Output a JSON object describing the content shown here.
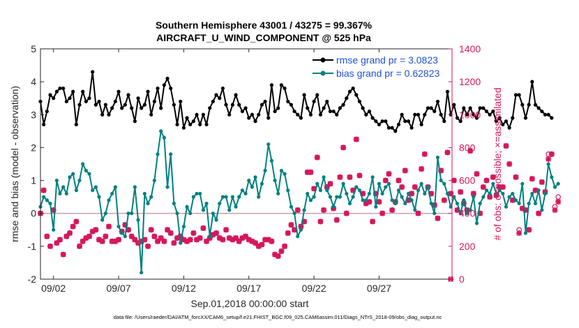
{
  "colors": {
    "rmse": "#000000",
    "bias": "#008080",
    "obs": "#d6175b",
    "zero_line": "#c8a0a8",
    "legend_text": "#1f4fd6",
    "axis": "#262626"
  },
  "chart_data": {
    "type": "line",
    "title_line1": "Southern Hemisphere 43001 / 43275 = 99.367%",
    "title_line2": "AIRCRAFT_U_WIND_COMPONENT @ 525 hPa",
    "xlabel": "Sep.01,2018 00:00:00 start",
    "ylabel_left": "rmse and bias (model - observation)",
    "ylabel_right": "# of obs: o=possible; ×=assimilated",
    "xlim": [
      1,
      32.6
    ],
    "ylim_left": [
      -2,
      5
    ],
    "ylim_right": [
      0,
      1400
    ],
    "x_ticks": [
      2,
      7,
      12,
      17,
      22,
      27
    ],
    "x_tick_labels": [
      "09/02",
      "09/07",
      "09/12",
      "09/17",
      "09/22",
      "09/27"
    ],
    "y_ticks_left": [
      -2,
      -1,
      0,
      1,
      2,
      3,
      4,
      5
    ],
    "y_ticks_left_labels": [
      "-2",
      "-1",
      "0",
      "1",
      "2",
      "3",
      "4",
      "5"
    ],
    "y_ticks_right": [
      0,
      200,
      400,
      600,
      800,
      1000,
      1200,
      1400
    ],
    "y_ticks_right_labels": [
      "0",
      "200",
      "400",
      "600",
      "800",
      "1000",
      "1200",
      "1400"
    ],
    "footnote": "data file: /Users/raeder/DAI/ATM_forcXX/CAM6_setup/f.e21.FHIST_BGC.f09_025.CAM6assim.011/Diags_NTrS_2018-09/obs_diag_output.nc",
    "legend": [
      {
        "name": "rmse grand pr = 3.0823",
        "series": "rmse"
      },
      {
        "name": "bias grand pr = 0.62823",
        "series": "bias"
      }
    ],
    "x_start": 1.0,
    "x_step": 0.25,
    "series": [
      {
        "name": "rmse",
        "values": [
          3.4,
          2.7,
          3.1,
          3.6,
          3.5,
          3.7,
          3.8,
          3.8,
          3.4,
          3.5,
          3.7,
          2.7,
          3.3,
          3.7,
          3.4,
          3.5,
          4.3,
          3.3,
          3.4,
          3.0,
          3.3,
          3.0,
          3.2,
          3.4,
          3.7,
          3.2,
          3.3,
          3.6,
          3.2,
          2.8,
          3.5,
          3.2,
          3.3,
          3.7,
          3.0,
          3.4,
          3.8,
          3.2,
          3.9,
          4.1,
          3.8,
          3.3,
          2.7,
          3.4,
          2.6,
          2.9,
          2.7,
          2.8,
          3.0,
          2.7,
          3.0,
          2.7,
          3.2,
          3.4,
          3.6,
          3.5,
          3.8,
          3.3,
          3.0,
          3.3,
          3.6,
          3.3,
          3.1,
          3.2,
          2.9,
          3.0,
          2.8,
          3.0,
          3.3,
          3.4,
          2.9,
          3.9,
          3.1,
          3.2,
          3.9,
          3.8,
          3.4,
          3.3,
          3.1,
          3.0,
          2.9,
          3.6,
          3.2,
          3.0,
          3.4,
          3.6,
          3.0,
          3.2,
          3.4,
          3.1,
          3.1,
          3.0,
          3.2,
          3.3,
          3.5,
          3.7,
          3.8,
          3.6,
          3.4,
          3.2,
          3.0,
          3.1,
          2.9,
          2.8,
          2.7,
          2.8,
          2.8,
          2.6,
          2.6,
          2.5,
          2.7,
          3.0,
          2.8,
          2.8,
          2.6,
          3.0,
          3.0,
          2.7,
          3.0,
          3.2,
          3.2,
          3.1,
          3.4,
          3.0,
          2.8,
          3.7,
          3.0,
          3.3,
          2.9,
          2.8,
          3.2,
          3.0,
          3.2,
          3.0,
          2.9,
          3.2,
          3.2,
          3.1,
          3.0,
          3.1,
          2.8,
          2.9,
          2.7,
          2.8,
          2.6,
          2.9,
          3.6,
          3.6,
          3.3,
          2.9,
          3.3,
          4.0,
          3.3,
          3.2,
          3.1,
          3.0,
          3.0,
          2.9
        ]
      },
      {
        "name": "bias",
        "values": [
          0.2,
          0.5,
          0.4,
          0.3,
          -0.5,
          1.0,
          0.6,
          0.8,
          0.6,
          1.1,
          1.2,
          0.7,
          1.0,
          1.5,
          1.3,
          1.2,
          0.7,
          0.8,
          0.5,
          -0.2,
          0.0,
          0.4,
          0.6,
          0.8,
          -0.4,
          -0.6,
          -0.7,
          0.0,
          0.0,
          0.8,
          -0.2,
          -1.8,
          0.6,
          0.3,
          0.5,
          1.0,
          1.8,
          2.5,
          2.3,
          0.8,
          1.8,
          0.3,
          0.0,
          -0.9,
          -0.4,
          0.2,
          0.0,
          0.5,
          0.6,
          0.6,
          0.1,
          0.3,
          -0.7,
          0.0,
          -0.2,
          0.3,
          0.5,
          0.5,
          0.1,
          0.5,
          0.2,
          0.5,
          0.7,
          0.6,
          1.0,
          0.8,
          1.1,
          0.5,
          0.9,
          1.3,
          2.1,
          1.6,
          1.0,
          0.6,
          1.3,
          1.2,
          0.7,
          0.2,
          0.0,
          -0.7,
          -0.5,
          0.1,
          0.6,
          0.4,
          0.5,
          0.9,
          0.7,
          1.1,
          0.7,
          0.5,
          0.2,
          0.5,
          0.5,
          0.9,
          0.6,
          0.3,
          0.5,
          0.8,
          0.7,
          0.4,
          0.4,
          0.6,
          1.1,
          0.2,
          0.9,
          0.6,
          0.8,
          0.9,
          0.4,
          0.3,
          0.7,
          0.5,
          0.3,
          0.6,
          0.4,
          0.1,
          0.7,
          0.9,
          0.6,
          0.8,
          0.3,
          0.0,
          1.7,
          1.0,
          0.9,
          0.6,
          0.2,
          0.5,
          0.3,
          0.0,
          0.4,
          0.0,
          0.1,
          0.5,
          -0.3,
          0.3,
          0.5,
          0.7,
          0.6,
          0.9,
          0.6,
          0.7,
          0.6,
          0.2,
          0.5,
          0.6,
          0.4,
          0.3,
          0.9,
          -0.6,
          0.3,
          0.6,
          0.3,
          0.7,
          0.1,
          0.6,
          1.5,
          1.1,
          0.8,
          0.9
        ]
      },
      {
        "name": "obs_assimilated",
        "values": [
          400,
          540,
          260,
          200,
          420,
          220,
          240,
          150,
          260,
          280,
          320,
          350,
          200,
          230,
          250,
          260,
          290,
          300,
          240,
          230,
          260,
          320,
          230,
          230,
          240,
          290,
          330,
          300,
          260,
          240,
          220,
          230,
          240,
          200,
          300,
          260,
          230,
          250,
          230,
          300,
          280,
          220,
          250,
          260,
          240,
          230,
          240,
          280,
          240,
          250,
          310,
          230,
          250,
          270,
          280,
          250,
          240,
          300,
          250,
          240,
          250,
          230,
          250,
          260,
          240,
          230,
          220,
          200,
          210,
          240,
          240,
          230,
          150,
          140,
          170,
          200,
          280,
          330,
          300,
          420,
          320,
          350,
          650,
          650,
          550,
          740,
          350,
          420,
          560,
          580,
          430,
          360,
          620,
          800,
          400,
          620,
          540,
          850,
          630,
          520,
          460,
          470,
          350,
          520,
          470,
          400,
          600,
          640,
          420,
          470,
          600,
          560,
          660,
          480,
          520,
          560,
          400,
          670,
          760,
          560,
          520,
          450,
          370,
          660,
          480,
          770,
          520,
          600,
          420,
          530,
          460,
          420,
          780,
          520,
          640,
          400,
          560,
          600,
          500,
          620,
          510,
          560,
          560,
          810,
          700,
          480,
          620,
          280,
          430,
          420,
          300,
          610,
          540,
          400,
          590,
          530,
          730,
          760,
          420,
          470
        ]
      },
      {
        "name": "obs_possible",
        "values": [
          400,
          540,
          260,
          200,
          420,
          220,
          240,
          150,
          260,
          280,
          320,
          350,
          200,
          230,
          250,
          260,
          290,
          300,
          240,
          230,
          260,
          320,
          230,
          230,
          240,
          290,
          330,
          300,
          260,
          240,
          220,
          230,
          240,
          200,
          300,
          260,
          230,
          250,
          230,
          300,
          280,
          220,
          250,
          260,
          240,
          230,
          240,
          280,
          240,
          250,
          310,
          230,
          250,
          270,
          280,
          250,
          240,
          300,
          250,
          240,
          250,
          230,
          250,
          260,
          240,
          230,
          220,
          200,
          210,
          240,
          240,
          230,
          150,
          140,
          170,
          200,
          280,
          330,
          300,
          420,
          320,
          350,
          650,
          650,
          550,
          740,
          350,
          420,
          560,
          580,
          430,
          360,
          620,
          800,
          400,
          620,
          540,
          850,
          630,
          520,
          460,
          470,
          350,
          520,
          470,
          400,
          600,
          640,
          420,
          470,
          600,
          560,
          660,
          480,
          520,
          560,
          400,
          670,
          760,
          560,
          520,
          450,
          370,
          660,
          480,
          770,
          520,
          600,
          420,
          530,
          460,
          420,
          780,
          520,
          640,
          400,
          560,
          600,
          500,
          620,
          510,
          560,
          560,
          810,
          700,
          480,
          620,
          300,
          430,
          420,
          300,
          610,
          540,
          400,
          590,
          530,
          760,
          760,
          440,
          500
        ]
      }
    ],
    "final_point": {
      "x": 32.5,
      "assimilated": 0,
      "possible": 0
    }
  }
}
